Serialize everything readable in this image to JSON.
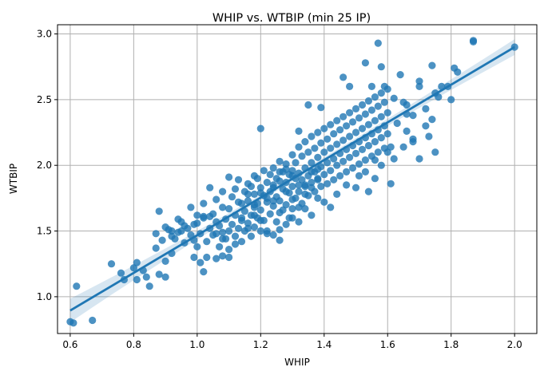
{
  "chart_data": {
    "type": "scatter",
    "title": "WHIP vs. WTBIP (min 25 IP)",
    "xlabel": "WHIP",
    "ylabel": "WTBIP",
    "xlim": [
      0.56,
      2.07
    ],
    "ylim": [
      0.72,
      3.07
    ],
    "xticks": [
      0.6,
      0.8,
      1.0,
      1.2,
      1.4,
      1.6,
      1.8,
      2.0
    ],
    "yticks": [
      1.0,
      1.5,
      2.0,
      2.5,
      3.0
    ],
    "xtick_labels": [
      "0.6",
      "0.8",
      "1.0",
      "1.2",
      "1.4",
      "1.6",
      "1.8",
      "2.0"
    ],
    "ytick_labels": [
      "1.0",
      "1.5",
      "2.0",
      "2.5",
      "3.0"
    ],
    "grid": true,
    "point_color": "#1f77b4",
    "point_opacity": 0.8,
    "regression": {
      "x0": 0.6,
      "y0": 0.895,
      "x1": 2.0,
      "y1": 2.9,
      "ci_band_start": 0.09,
      "ci_band_middle": 0.02,
      "ci_band_end": 0.06
    },
    "points": [
      [
        0.6,
        0.81
      ],
      [
        0.61,
        0.8
      ],
      [
        0.62,
        1.08
      ],
      [
        0.67,
        0.82
      ],
      [
        0.73,
        1.25
      ],
      [
        0.76,
        1.18
      ],
      [
        0.77,
        1.13
      ],
      [
        0.8,
        1.22
      ],
      [
        0.81,
        1.26
      ],
      [
        0.81,
        1.13
      ],
      [
        0.83,
        1.2
      ],
      [
        0.84,
        1.15
      ],
      [
        0.85,
        1.08
      ],
      [
        0.87,
        1.37
      ],
      [
        0.88,
        1.17
      ],
      [
        0.9,
        1.15
      ],
      [
        0.88,
        1.65
      ],
      [
        0.9,
        1.53
      ],
      [
        0.91,
        1.51
      ],
      [
        0.9,
        1.27
      ],
      [
        0.92,
        1.46
      ],
      [
        0.92,
        1.33
      ],
      [
        0.93,
        1.44
      ],
      [
        0.94,
        1.49
      ],
      [
        0.95,
        1.57
      ],
      [
        0.95,
        1.5
      ],
      [
        0.96,
        1.41
      ],
      [
        0.97,
        1.52
      ],
      [
        0.98,
        1.47
      ],
      [
        0.99,
        1.55
      ],
      [
        0.99,
        1.43
      ],
      [
        1.0,
        1.38
      ],
      [
        1.0,
        1.62
      ],
      [
        1.0,
        1.56
      ],
      [
        0.99,
        1.3
      ],
      [
        1.01,
        1.26
      ],
      [
        1.02,
        1.19
      ],
      [
        1.01,
        1.48
      ],
      [
        1.02,
        1.61
      ],
      [
        1.03,
        1.42
      ],
      [
        1.03,
        1.3
      ],
      [
        1.04,
        1.52
      ],
      [
        1.05,
        1.63
      ],
      [
        1.05,
        1.47
      ],
      [
        1.06,
        1.57
      ],
      [
        1.06,
        1.29
      ],
      [
        1.07,
        1.38
      ],
      [
        1.07,
        1.54
      ],
      [
        1.08,
        1.31
      ],
      [
        1.08,
        1.68
      ],
      [
        1.08,
        1.49
      ],
      [
        1.09,
        1.59
      ],
      [
        1.09,
        1.44
      ],
      [
        1.1,
        1.5
      ],
      [
        1.1,
        1.67
      ],
      [
        1.1,
        1.3
      ],
      [
        1.11,
        1.76
      ],
      [
        1.11,
        1.55
      ],
      [
        1.12,
        1.62
      ],
      [
        1.12,
        1.46
      ],
      [
        1.13,
        1.72
      ],
      [
        1.13,
        1.52
      ],
      [
        1.13,
        1.89
      ],
      [
        1.14,
        1.58
      ],
      [
        1.14,
        1.42
      ],
      [
        1.15,
        1.8
      ],
      [
        1.15,
        1.65
      ],
      [
        1.15,
        1.5
      ],
      [
        1.16,
        1.73
      ],
      [
        1.16,
        1.56
      ],
      [
        1.17,
        1.84
      ],
      [
        1.17,
        1.62
      ],
      [
        1.17,
        1.46
      ],
      [
        1.18,
        1.78
      ],
      [
        1.18,
        1.68
      ],
      [
        1.18,
        1.53
      ],
      [
        1.19,
        1.9
      ],
      [
        1.19,
        1.71
      ],
      [
        1.19,
        1.6
      ],
      [
        1.2,
        1.83
      ],
      [
        1.2,
        1.66
      ],
      [
        1.2,
        1.5
      ],
      [
        1.21,
        1.96
      ],
      [
        1.21,
        1.77
      ],
      [
        1.21,
        1.58
      ],
      [
        1.22,
        1.87
      ],
      [
        1.22,
        1.72
      ],
      [
        1.22,
        1.48
      ],
      [
        1.23,
        1.93
      ],
      [
        1.23,
        1.8
      ],
      [
        1.23,
        1.63
      ],
      [
        1.24,
        1.98
      ],
      [
        1.24,
        1.85
      ],
      [
        1.24,
        1.69
      ],
      [
        1.25,
        1.9
      ],
      [
        1.25,
        1.76
      ],
      [
        1.25,
        1.57
      ],
      [
        1.26,
        2.03
      ],
      [
        1.26,
        1.88
      ],
      [
        1.26,
        1.73
      ],
      [
        1.26,
        1.51
      ],
      [
        1.27,
        1.95
      ],
      [
        1.27,
        1.82
      ],
      [
        1.27,
        1.66
      ],
      [
        1.28,
        2.01
      ],
      [
        1.28,
        1.87
      ],
      [
        1.28,
        1.7
      ],
      [
        1.29,
        1.93
      ],
      [
        1.29,
        1.79
      ],
      [
        1.29,
        1.6
      ],
      [
        1.3,
        2.08
      ],
      [
        1.3,
        1.96
      ],
      [
        1.3,
        1.84
      ],
      [
        1.3,
        1.67
      ],
      [
        1.31,
        2.02
      ],
      [
        1.31,
        1.9
      ],
      [
        1.31,
        1.75
      ],
      [
        1.32,
        2.14
      ],
      [
        1.32,
        1.94
      ],
      [
        1.32,
        1.8
      ],
      [
        1.33,
        2.07
      ],
      [
        1.33,
        1.89
      ],
      [
        1.33,
        1.71
      ],
      [
        1.34,
        2.18
      ],
      [
        1.34,
        1.98
      ],
      [
        1.34,
        1.85
      ],
      [
        1.35,
        2.1
      ],
      [
        1.35,
        1.92
      ],
      [
        1.35,
        1.77
      ],
      [
        1.36,
        2.22
      ],
      [
        1.36,
        2.02
      ],
      [
        1.36,
        1.87
      ],
      [
        1.37,
        2.13
      ],
      [
        1.37,
        1.95
      ],
      [
        1.37,
        1.8
      ],
      [
        1.38,
        2.25
      ],
      [
        1.38,
        2.06
      ],
      [
        1.38,
        1.9
      ],
      [
        1.39,
        2.17
      ],
      [
        1.39,
        1.99
      ],
      [
        1.39,
        1.84
      ],
      [
        1.4,
        2.28
      ],
      [
        1.4,
        2.1
      ],
      [
        1.4,
        1.93
      ],
      [
        1.41,
        2.2
      ],
      [
        1.41,
        2.02
      ],
      [
        1.41,
        1.86
      ],
      [
        1.42,
        2.31
      ],
      [
        1.42,
        2.13
      ],
      [
        1.42,
        1.96
      ],
      [
        1.43,
        2.24
      ],
      [
        1.43,
        2.05
      ],
      [
        1.43,
        1.89
      ],
      [
        1.44,
        2.34
      ],
      [
        1.44,
        2.16
      ],
      [
        1.44,
        2.0
      ],
      [
        1.45,
        2.27
      ],
      [
        1.45,
        2.09
      ],
      [
        1.45,
        1.92
      ],
      [
        1.46,
        2.37
      ],
      [
        1.46,
        2.19
      ],
      [
        1.46,
        2.03
      ],
      [
        1.47,
        2.3
      ],
      [
        1.47,
        2.12
      ],
      [
        1.47,
        1.95
      ],
      [
        1.48,
        2.4
      ],
      [
        1.48,
        2.22
      ],
      [
        1.48,
        2.06
      ],
      [
        1.49,
        2.33
      ],
      [
        1.49,
        2.15
      ],
      [
        1.49,
        1.98
      ],
      [
        1.5,
        2.43
      ],
      [
        1.5,
        2.25
      ],
      [
        1.5,
        2.09
      ],
      [
        1.51,
        2.36
      ],
      [
        1.51,
        2.18
      ],
      [
        1.51,
        2.01
      ],
      [
        1.52,
        2.46
      ],
      [
        1.52,
        2.28
      ],
      [
        1.52,
        2.12
      ],
      [
        1.53,
        2.39
      ],
      [
        1.53,
        2.21
      ],
      [
        1.53,
        2.04
      ],
      [
        1.54,
        2.49
      ],
      [
        1.54,
        2.31
      ],
      [
        1.54,
        2.15
      ],
      [
        1.55,
        2.42
      ],
      [
        1.55,
        2.24
      ],
      [
        1.55,
        2.07
      ],
      [
        1.56,
        2.52
      ],
      [
        1.56,
        2.34
      ],
      [
        1.56,
        2.18
      ],
      [
        1.57,
        2.45
      ],
      [
        1.57,
        2.27
      ],
      [
        1.57,
        2.1
      ],
      [
        1.58,
        2.55
      ],
      [
        1.58,
        2.37
      ],
      [
        1.58,
        2.21
      ],
      [
        1.59,
        2.48
      ],
      [
        1.59,
        2.3
      ],
      [
        1.59,
        2.13
      ],
      [
        1.6,
        2.58
      ],
      [
        1.6,
        2.4
      ],
      [
        1.6,
        2.24
      ],
      [
        1.61,
        1.86
      ],
      [
        1.57,
        2.93
      ],
      [
        1.58,
        2.75
      ],
      [
        1.66,
        2.26
      ],
      [
        1.68,
        2.2
      ],
      [
        1.7,
        2.64
      ],
      [
        1.72,
        2.3
      ],
      [
        1.74,
        2.76
      ],
      [
        1.75,
        2.55
      ],
      [
        1.77,
        2.6
      ],
      [
        1.79,
        2.6
      ],
      [
        1.8,
        2.5
      ],
      [
        1.81,
        2.74
      ],
      [
        1.82,
        2.71
      ],
      [
        1.87,
        2.95
      ],
      [
        1.87,
        2.94
      ],
      [
        2.0,
        2.9
      ],
      [
        1.62,
        2.51
      ],
      [
        1.64,
        2.69
      ],
      [
        1.66,
        2.46
      ],
      [
        1.68,
        2.38
      ],
      [
        1.7,
        2.6
      ],
      [
        1.72,
        2.43
      ],
      [
        1.74,
        2.35
      ],
      [
        1.76,
        2.52
      ],
      [
        1.54,
        1.8
      ],
      [
        1.56,
        1.9
      ],
      [
        1.5,
        1.83
      ],
      [
        1.47,
        1.85
      ],
      [
        1.44,
        1.78
      ],
      [
        1.42,
        1.68
      ],
      [
        1.4,
        1.72
      ],
      [
        1.38,
        1.75
      ],
      [
        1.36,
        1.62
      ],
      [
        1.34,
        1.67
      ],
      [
        1.32,
        1.57
      ],
      [
        1.3,
        1.6
      ],
      [
        1.28,
        1.55
      ],
      [
        1.26,
        1.43
      ],
      [
        1.24,
        1.47
      ],
      [
        1.22,
        1.5
      ],
      [
        1.2,
        1.58
      ],
      [
        1.18,
        1.62
      ],
      [
        1.16,
        1.52
      ],
      [
        1.14,
        1.6
      ],
      [
        1.12,
        1.4
      ],
      [
        1.1,
        1.36
      ],
      [
        1.08,
        1.44
      ],
      [
        1.06,
        1.48
      ],
      [
        1.04,
        1.61
      ],
      [
        1.02,
        1.6
      ],
      [
        1.04,
        1.83
      ],
      [
        1.06,
        1.74
      ],
      [
        1.08,
        1.8
      ],
      [
        1.1,
        1.91
      ],
      [
        1.12,
        1.82
      ],
      [
        1.14,
        1.71
      ],
      [
        1.16,
        1.86
      ],
      [
        1.18,
        1.92
      ],
      [
        1.2,
        1.79
      ],
      [
        1.22,
        1.75
      ],
      [
        1.24,
        1.83
      ],
      [
        1.26,
        1.95
      ],
      [
        1.28,
        1.97
      ],
      [
        1.3,
        1.92
      ],
      [
        1.32,
        1.85
      ],
      [
        1.34,
        1.78
      ],
      [
        1.36,
        1.83
      ],
      [
        1.38,
        1.97
      ],
      [
        1.2,
        2.28
      ],
      [
        1.32,
        2.26
      ],
      [
        1.35,
        2.46
      ],
      [
        1.39,
        2.44
      ],
      [
        1.46,
        2.67
      ],
      [
        1.48,
        2.6
      ],
      [
        1.53,
        2.78
      ],
      [
        1.55,
        2.6
      ],
      [
        1.59,
        2.6
      ],
      [
        1.6,
        2.1
      ],
      [
        1.62,
        2.05
      ],
      [
        1.65,
        2.14
      ],
      [
        1.68,
        2.18
      ],
      [
        1.7,
        2.05
      ],
      [
        1.73,
        2.22
      ],
      [
        1.75,
        2.1
      ],
      [
        1.53,
        1.95
      ],
      [
        1.51,
        1.92
      ],
      [
        1.56,
        2.04
      ],
      [
        1.58,
        2.0
      ],
      [
        1.61,
        2.14
      ],
      [
        1.63,
        2.32
      ],
      [
        1.66,
        2.39
      ],
      [
        1.65,
        2.48
      ],
      [
        1.02,
        1.71
      ],
      [
        0.98,
        1.68
      ],
      [
        0.96,
        1.54
      ],
      [
        0.94,
        1.59
      ],
      [
        0.92,
        1.5
      ],
      [
        0.89,
        1.43
      ],
      [
        0.87,
        1.48
      ],
      [
        1.16,
        1.78
      ],
      [
        1.18,
        1.7
      ],
      [
        1.24,
        1.73
      ],
      [
        1.26,
        1.64
      ],
      [
        1.28,
        1.8
      ],
      [
        1.3,
        1.74
      ],
      [
        1.32,
        1.68
      ],
      [
        1.34,
        1.84
      ],
      [
        1.36,
        1.95
      ],
      [
        1.38,
        1.89
      ]
    ]
  }
}
